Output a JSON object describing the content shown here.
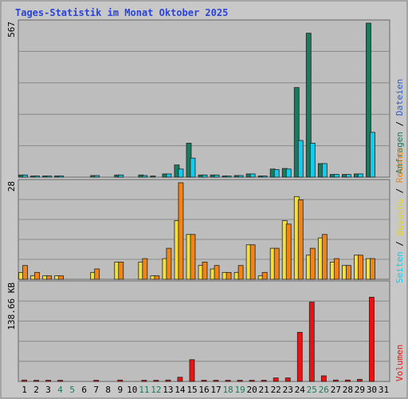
{
  "chart_data": {
    "type": "bar",
    "title": "Tages-Statistik im Monat Oktober 2025",
    "categories": [
      "1",
      "2",
      "3",
      "4",
      "5",
      "6",
      "7",
      "8",
      "9",
      "10",
      "11",
      "12",
      "13",
      "14",
      "15",
      "16",
      "17",
      "18",
      "19",
      "20",
      "21",
      "22",
      "23",
      "24",
      "25",
      "26",
      "27",
      "28",
      "29",
      "30",
      "31"
    ],
    "weekend_days": [
      "4",
      "5",
      "11",
      "12",
      "18",
      "19",
      "25",
      "26"
    ],
    "panels": [
      {
        "id": "top",
        "ymax_label": "567",
        "ylim": [
          0,
          567
        ],
        "series": [
          {
            "name": "Anfragen",
            "color": "#1b7a5e",
            "values": [
              8,
              4,
              4,
              4,
              0,
              0,
              6,
              0,
              8,
              0,
              8,
              4,
              12,
              45,
              125,
              8,
              8,
              4,
              6,
              12,
              4,
              30,
              32,
              330,
              530,
              50,
              10,
              10,
              12,
              567,
              0
            ]
          },
          {
            "name": "Dateien",
            "color": "#12ccee",
            "values": [
              8,
              4,
              4,
              4,
              0,
              0,
              6,
              0,
              8,
              0,
              6,
              0,
              12,
              30,
              70,
              8,
              8,
              4,
              6,
              12,
              4,
              28,
              30,
              135,
              125,
              50,
              10,
              10,
              12,
              165,
              0
            ]
          }
        ]
      },
      {
        "id": "middle",
        "ymax_label": "28",
        "ylim": [
          0,
          28
        ],
        "series": [
          {
            "name": "Besuche",
            "color": "#f0e040",
            "values": [
              2,
              1,
              1,
              1,
              0,
              0,
              2,
              0,
              5,
              0,
              5,
              1,
              6,
              17,
              13,
              4,
              3,
              2,
              2,
              10,
              1,
              9,
              17,
              24,
              7,
              12,
              5,
              4,
              7,
              6,
              0
            ]
          },
          {
            "name": "Rechner",
            "color": "#f08418",
            "values": [
              4,
              2,
              1,
              1,
              0,
              0,
              3,
              0,
              5,
              0,
              6,
              1,
              9,
              28,
              13,
              5,
              4,
              2,
              4,
              10,
              2,
              9,
              16,
              23,
              9,
              13,
              6,
              4,
              7,
              6,
              0
            ]
          }
        ]
      },
      {
        "id": "bottom",
        "ymax_label": "138.66 KB",
        "ylim": [
          0,
          138.66
        ],
        "series": [
          {
            "name": "Volumen",
            "color": "#ee1111",
            "values": [
              2,
              1,
              1,
              1,
              0,
              0,
              1,
              0,
              2,
              0,
              1,
              1,
              2,
              6,
              31,
              1,
              1,
              1,
              1,
              1,
              1,
              5,
              5,
              70,
              113,
              8,
              2,
              2,
              3,
              120,
              0
            ]
          }
        ]
      }
    ],
    "legend_right": {
      "top_labels": [
        "Anfragen",
        "Dateien"
      ],
      "middle_labels": [
        "Seiten",
        "Besuche",
        "Rechner"
      ],
      "bottom_labels": [
        "Volumen"
      ],
      "colors": {
        "Anfragen": "#1b7a5e",
        "Dateien": "#2a5cc8",
        "Seiten": "#12ccee",
        "Besuche": "#e6d22a",
        "Rechner": "#f08418",
        "Volumen": "#ee1111"
      }
    }
  }
}
